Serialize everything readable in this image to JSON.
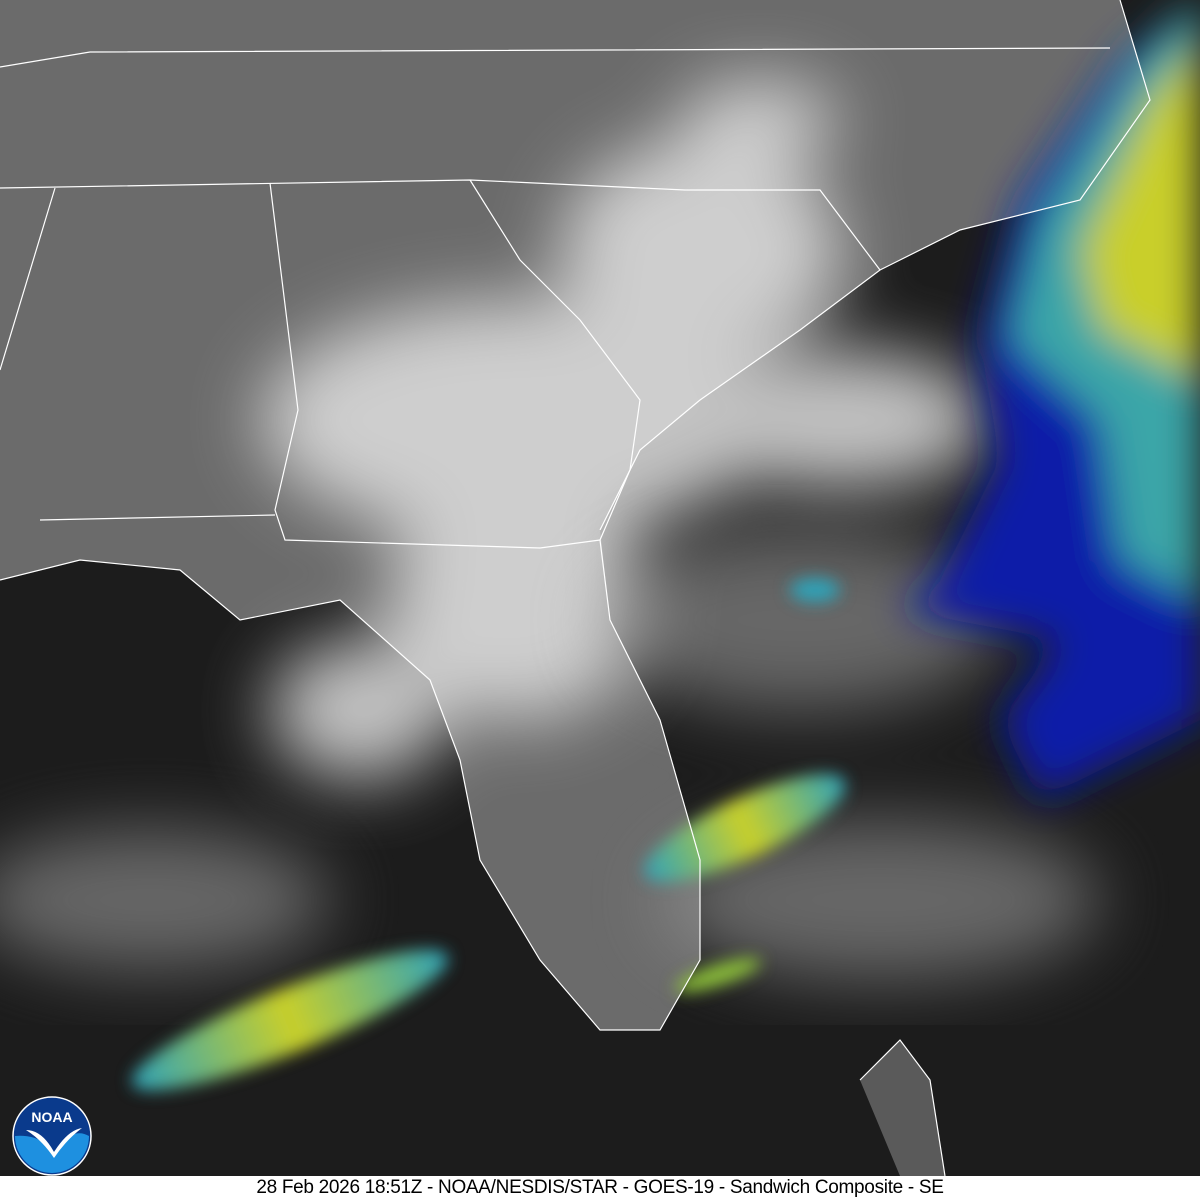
{
  "caption": "28 Feb 2026 18:51Z - NOAA/NESDIS/STAR - GOES-19 - Sandwich Composite - SE",
  "logo": {
    "text": "NOAA",
    "icon": "noaa-logo",
    "colors": {
      "outer": "#0a3a8c",
      "inner": "#1e90e0",
      "bird": "#ffffff"
    }
  },
  "imagery": {
    "colors": {
      "land": "#6b6b6b",
      "ocean": "#1c1c1c",
      "cloud": "#e6e6e6",
      "cold_top_low": "#0a1fa8",
      "cold_top_mid": "#2fa3b8",
      "cold_top_high": "#d6d21c",
      "border": "#ffffff"
    }
  }
}
